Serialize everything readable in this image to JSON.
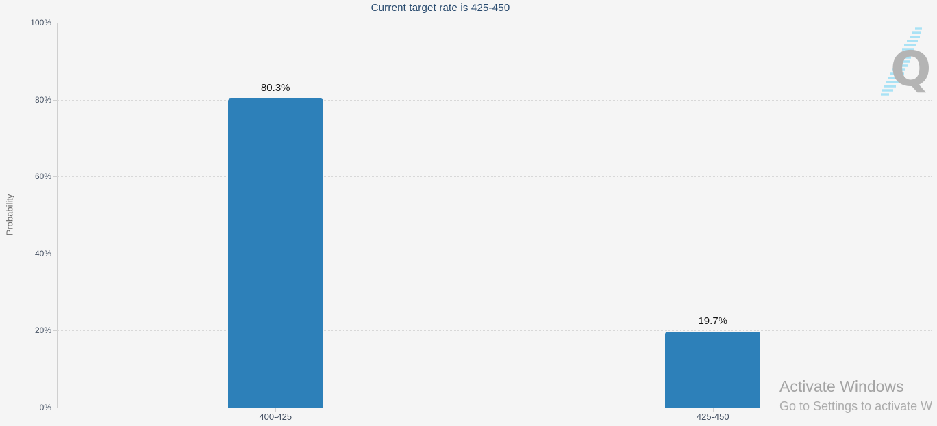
{
  "chart_data": {
    "type": "bar",
    "title": "Current target rate is 425-450",
    "xlabel": "",
    "ylabel": "Probability",
    "categories": [
      "400-425",
      "425-450"
    ],
    "values": [
      80.3,
      19.7
    ],
    "value_labels": [
      "80.3%",
      "19.7%"
    ],
    "ylim": [
      0,
      100
    ],
    "yticks": [
      0,
      20,
      40,
      60,
      80,
      100
    ],
    "ytick_labels": [
      "0%",
      "20%",
      "40%",
      "60%",
      "80%",
      "100%"
    ],
    "grid": "horizontal dotted, every 20%",
    "legend": "none",
    "bar_color": "#2d80b9",
    "background_color": "#f5f5f5",
    "title_color": "#27496d"
  },
  "watermark": {
    "logo_letter": "Q",
    "activate_line1": "Activate Windows",
    "activate_line2": "Go to Settings to activate W"
  }
}
